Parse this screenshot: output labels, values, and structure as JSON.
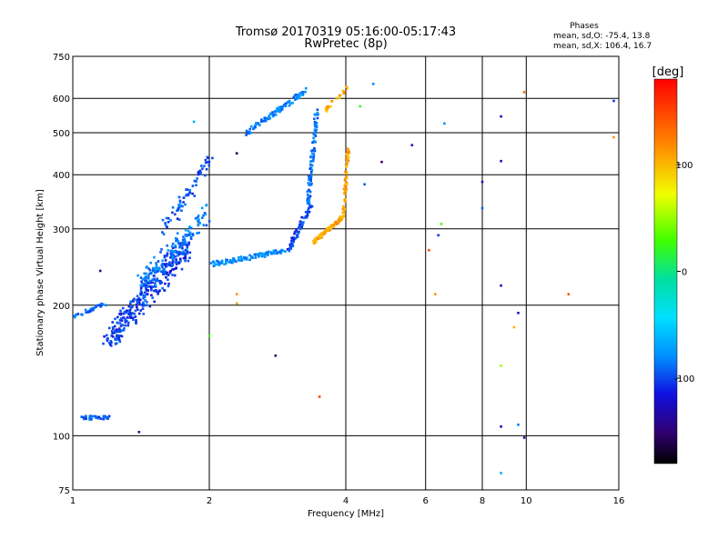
{
  "chart_data": {
    "type": "scatter",
    "title": "Tromsø 20170319 05:16:00-05:17:43",
    "subtitle": "RwPretec (8p)",
    "xlabel": "Frequency [MHz]",
    "ylabel": "Stationary phase Virtual Height [km]",
    "x_scale": "log",
    "y_scale": "log",
    "xlim": [
      1,
      16
    ],
    "ylim": [
      75,
      750
    ],
    "x_ticks": [
      1,
      2,
      4,
      6,
      8,
      10,
      16
    ],
    "x_tick_labels": [
      "1",
      "2",
      "4",
      "6",
      "8",
      "10",
      "16"
    ],
    "y_ticks": [
      75,
      100,
      200,
      300,
      400,
      500,
      600,
      750
    ],
    "y_tick_labels": [
      "75",
      "100",
      "200",
      "300",
      "400",
      "500",
      "600",
      "750"
    ],
    "grid": true,
    "phases": {
      "title": "Phases",
      "line_o": "mean, sd,O: -75.4, 13.8",
      "line_x": "mean, sd,X: 106.4, 16.7"
    },
    "colorbar": {
      "label": "[deg]",
      "range": [
        -180,
        180
      ],
      "ticks": [
        100,
        0,
        -100
      ],
      "tick_labels": [
        "100",
        "0",
        "-100"
      ]
    },
    "traces": [
      {
        "f_from": 1.05,
        "f_to": 1.2,
        "h_from": 110,
        "h_to": 110,
        "phase": -90,
        "count": 40,
        "spread": 0.02
      },
      {
        "f_from": 1.0,
        "f_to": 1.18,
        "h_from": 188,
        "h_to": 202,
        "phase": -85,
        "count": 35,
        "spread": 0.02
      },
      {
        "f_from": 1.2,
        "f_to": 1.8,
        "h_from": 165,
        "h_to": 280,
        "phase": -100,
        "count": 320,
        "spread": 0.12
      },
      {
        "f_from": 1.6,
        "f_to": 2.0,
        "h_from": 300,
        "h_to": 430,
        "phase": -95,
        "count": 70,
        "spread": 0.08
      },
      {
        "f_from": 1.4,
        "f_to": 2.0,
        "h_from": 220,
        "h_to": 330,
        "phase": -80,
        "count": 120,
        "spread": 0.1
      },
      {
        "f_from": 2.0,
        "f_to": 3.0,
        "h_from": 248,
        "h_to": 268,
        "phase": -75,
        "count": 110,
        "spread": 0.025
      },
      {
        "f_from": 3.0,
        "f_to": 3.35,
        "h_from": 270,
        "h_to": 340,
        "phase": -100,
        "count": 60,
        "spread": 0.03
      },
      {
        "f_from": 3.3,
        "f_to": 3.45,
        "h_from": 340,
        "h_to": 560,
        "phase": -85,
        "count": 90,
        "spread": 0.03
      },
      {
        "f_from": 2.4,
        "f_to": 3.3,
        "h_from": 495,
        "h_to": 630,
        "phase": -80,
        "count": 100,
        "spread": 0.03
      },
      {
        "f_from": 3.4,
        "f_to": 3.95,
        "h_from": 280,
        "h_to": 320,
        "phase": 115,
        "count": 80,
        "spread": 0.02
      },
      {
        "f_from": 3.95,
        "f_to": 4.05,
        "h_from": 320,
        "h_to": 460,
        "phase": 115,
        "count": 60,
        "spread": 0.025
      },
      {
        "f_from": 3.6,
        "f_to": 4.05,
        "h_from": 560,
        "h_to": 640,
        "phase": 110,
        "count": 20,
        "spread": 0.03
      }
    ],
    "scattered_points": [
      {
        "f": 8.8,
        "h": 545,
        "phase": -120
      },
      {
        "f": 8.8,
        "h": 430,
        "phase": -130
      },
      {
        "f": 8.0,
        "h": 385,
        "phase": -120
      },
      {
        "f": 8.0,
        "h": 335,
        "phase": -90
      },
      {
        "f": 8.8,
        "h": 222,
        "phase": -130
      },
      {
        "f": 9.6,
        "h": 192,
        "phase": -110
      },
      {
        "f": 9.4,
        "h": 178,
        "phase": 110
      },
      {
        "f": 8.8,
        "h": 145,
        "phase": 60
      },
      {
        "f": 8.8,
        "h": 105,
        "phase": -120
      },
      {
        "f": 9.6,
        "h": 106,
        "phase": -80
      },
      {
        "f": 9.9,
        "h": 99,
        "phase": -130
      },
      {
        "f": 8.8,
        "h": 82,
        "phase": -60
      },
      {
        "f": 9.9,
        "h": 620,
        "phase": 140
      },
      {
        "f": 15.6,
        "h": 592,
        "phase": -100
      },
      {
        "f": 15.6,
        "h": 488,
        "phase": 120
      },
      {
        "f": 12.4,
        "h": 212,
        "phase": 150
      },
      {
        "f": 6.6,
        "h": 525,
        "phase": -70
      },
      {
        "f": 5.6,
        "h": 468,
        "phase": -120
      },
      {
        "f": 4.8,
        "h": 428,
        "phase": -150
      },
      {
        "f": 4.4,
        "h": 380,
        "phase": -90
      },
      {
        "f": 6.4,
        "h": 290,
        "phase": -100
      },
      {
        "f": 6.1,
        "h": 268,
        "phase": 150
      },
      {
        "f": 6.5,
        "h": 308,
        "phase": 40
      },
      {
        "f": 6.3,
        "h": 212,
        "phase": 120
      },
      {
        "f": 4.6,
        "h": 648,
        "phase": -80
      },
      {
        "f": 4.3,
        "h": 575,
        "phase": 30
      },
      {
        "f": 1.4,
        "h": 102,
        "phase": -140
      },
      {
        "f": 2.8,
        "h": 153,
        "phase": -150
      },
      {
        "f": 3.5,
        "h": 123,
        "phase": 150
      },
      {
        "f": 2.0,
        "h": 170,
        "phase": 40
      },
      {
        "f": 2.3,
        "h": 212,
        "phase": 120
      },
      {
        "f": 2.3,
        "h": 202,
        "phase": 115
      },
      {
        "f": 1.15,
        "h": 240,
        "phase": -140
      },
      {
        "f": 2.3,
        "h": 448,
        "phase": -160
      },
      {
        "f": 1.85,
        "h": 530,
        "phase": -60
      }
    ]
  }
}
